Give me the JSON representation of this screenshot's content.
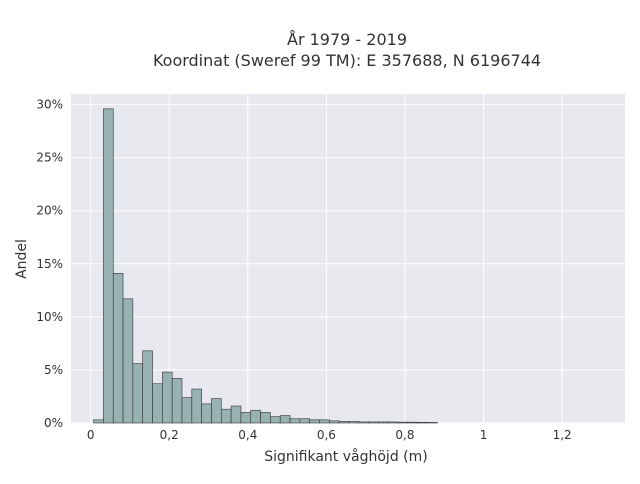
{
  "chart_data": {
    "type": "bar",
    "title_line1": "År 1979 - 2019",
    "title_line2": "Koordinat (Sweref 99 TM): E 357688, N 6196744",
    "xlabel": "Signifikant våghöjd (m)",
    "ylabel": "Andel",
    "xlim": [
      -0.05,
      1.36
    ],
    "ylim": [
      0,
      0.31
    ],
    "xticks": [
      {
        "value": 0,
        "label": "0"
      },
      {
        "value": 0.2,
        "label": "0,2"
      },
      {
        "value": 0.4,
        "label": "0,4"
      },
      {
        "value": 0.6,
        "label": "0,6"
      },
      {
        "value": 0.8,
        "label": "0,8"
      },
      {
        "value": 1.0,
        "label": "1"
      },
      {
        "value": 1.2,
        "label": "1,2"
      }
    ],
    "yticks": [
      {
        "value": 0,
        "label": "0%"
      },
      {
        "value": 0.05,
        "label": "5%"
      },
      {
        "value": 0.1,
        "label": "10%"
      },
      {
        "value": 0.15,
        "label": "15%"
      },
      {
        "value": 0.2,
        "label": "20%"
      },
      {
        "value": 0.25,
        "label": "25%"
      },
      {
        "value": 0.3,
        "label": "30%"
      }
    ],
    "grid": true,
    "bin_start": 0.0075,
    "bin_width": 0.025,
    "values": [
      0.003,
      0.296,
      0.141,
      0.117,
      0.056,
      0.068,
      0.037,
      0.048,
      0.042,
      0.024,
      0.032,
      0.018,
      0.023,
      0.013,
      0.016,
      0.01,
      0.012,
      0.01,
      0.006,
      0.007,
      0.004,
      0.004,
      0.003,
      0.003,
      0.002,
      0.0015,
      0.0015,
      0.001,
      0.001,
      0.001,
      0.001,
      0.0008,
      0.0008,
      0.0006,
      0.0005
    ],
    "colors": {
      "bar_fill": "#98b1b1",
      "bar_stroke": "#333333",
      "plot_bg": "#e8e8ef",
      "grid": "#ffffff",
      "text": "#333333"
    }
  }
}
